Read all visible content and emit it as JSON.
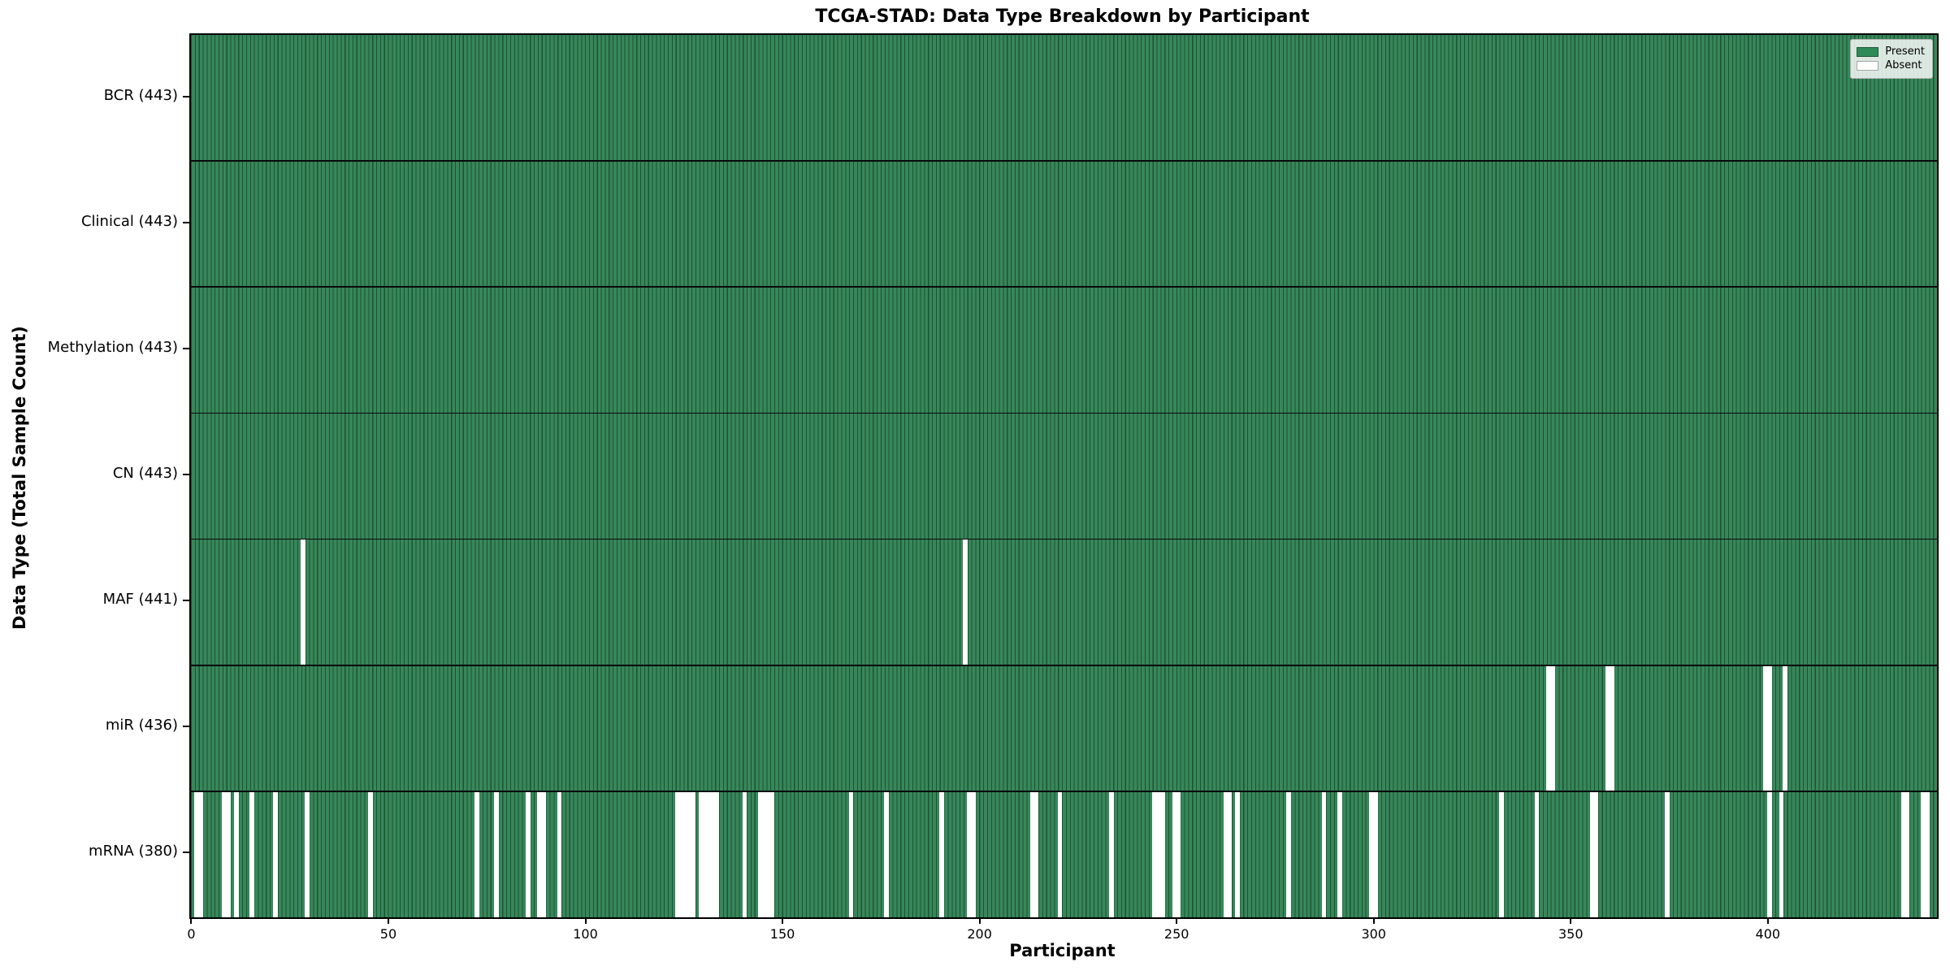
{
  "chart_data": {
    "type": "heatmap",
    "title": "TCGA-STAD: Data Type Breakdown by Participant",
    "xlabel": "Participant",
    "ylabel": "Data Type (Total Sample Count)",
    "n_participants": 443,
    "x_axis": {
      "min": 0,
      "max": 443,
      "ticks": [
        0,
        50,
        100,
        150,
        200,
        250,
        300,
        350,
        400
      ]
    },
    "colors": {
      "present": "#37875a",
      "present_edge": "#1e5233",
      "absent": "#ffffff",
      "row_divider": "#0a0a0a",
      "plot_border": "#000000"
    },
    "legend": {
      "position": "top-right",
      "items": [
        {
          "label": "Present",
          "color": "#2e8b57"
        },
        {
          "label": "Absent",
          "color": "#ffffff"
        }
      ]
    },
    "rows": [
      {
        "data_type": "BCR",
        "count": 443,
        "label": "BCR (443)",
        "absent_participants": []
      },
      {
        "data_type": "Clinical",
        "count": 443,
        "label": "Clinical (443)",
        "absent_participants": []
      },
      {
        "data_type": "Methylation",
        "count": 443,
        "label": "Methylation (443)",
        "absent_participants": []
      },
      {
        "data_type": "CN",
        "count": 443,
        "label": "CN (443)",
        "absent_participants": []
      },
      {
        "data_type": "MAF",
        "count": 441,
        "label": "MAF (441)",
        "absent_participants": [
          28,
          196
        ]
      },
      {
        "data_type": "miR",
        "count": 436,
        "label": "miR (436)",
        "absent_participants": [
          344,
          345,
          359,
          360,
          399,
          400,
          404
        ]
      },
      {
        "data_type": "mRNA",
        "count": 380,
        "label": "mRNA (380)",
        "absent_participants": [
          1,
          2,
          8,
          9,
          11,
          15,
          21,
          29,
          45,
          72,
          77,
          85,
          88,
          89,
          93,
          123,
          124,
          125,
          126,
          127,
          129,
          130,
          131,
          132,
          133,
          140,
          144,
          145,
          146,
          147,
          167,
          176,
          190,
          197,
          198,
          213,
          214,
          220,
          233,
          244,
          245,
          246,
          249,
          250,
          262,
          263,
          265,
          278,
          287,
          291,
          299,
          300,
          332,
          341,
          355,
          356,
          374,
          400,
          403,
          434,
          435,
          439,
          440
        ]
      }
    ]
  }
}
